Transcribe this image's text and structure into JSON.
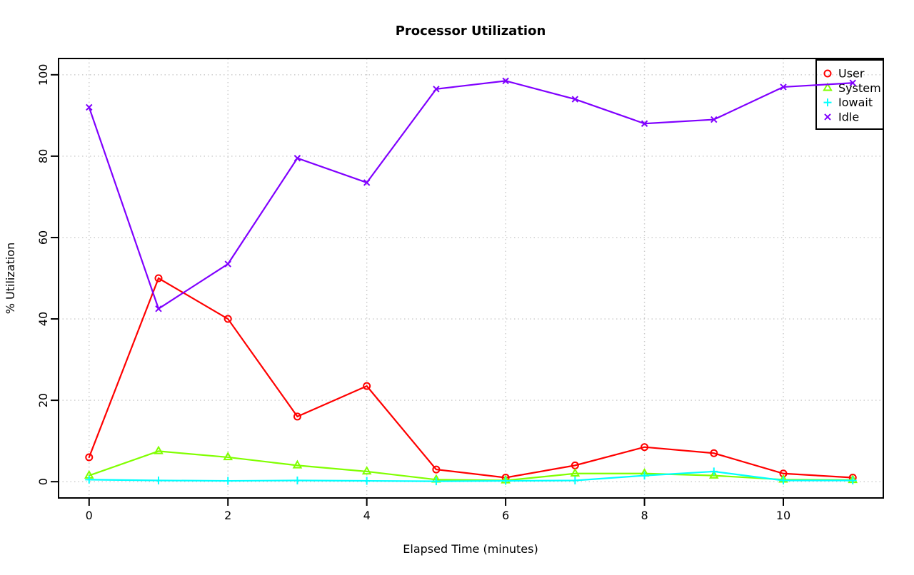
{
  "page": {
    "background": "#ffffff",
    "text_color": "#000000"
  },
  "chart_data": {
    "type": "line",
    "title": "Processor Utilization",
    "xlabel": "Elapsed Time (minutes)",
    "ylabel": "% Utilization",
    "x": [
      0,
      1,
      2,
      3,
      4,
      5,
      6,
      7,
      8,
      9,
      10,
      11
    ],
    "xticks": [
      0,
      2,
      4,
      6,
      8,
      10
    ],
    "yticks": [
      0,
      20,
      40,
      60,
      80,
      100
    ],
    "xlim": [
      -0.44,
      11.44
    ],
    "ylim": [
      -4,
      104
    ],
    "grid": {
      "style": "dotted",
      "color": "#c9c9c9",
      "vertical_at": [
        0,
        2,
        4,
        6,
        8,
        10
      ],
      "horizontal_at": [
        0,
        20,
        40,
        60,
        80,
        100
      ]
    },
    "series": [
      {
        "name": "User",
        "color": "#FF0000",
        "marker": "open-circle",
        "values": [
          6,
          50,
          40,
          16,
          23.5,
          3,
          1,
          4,
          8.5,
          7,
          2,
          1
        ]
      },
      {
        "name": "System",
        "color": "#80FF00",
        "marker": "open-triangle-up",
        "values": [
          1.5,
          7.5,
          6,
          4,
          2.5,
          0.5,
          0.3,
          2,
          2,
          1.5,
          0.5,
          0.4
        ]
      },
      {
        "name": "Iowait",
        "color": "#00FFFF",
        "marker": "plus",
        "values": [
          0.5,
          0.3,
          0.2,
          0.3,
          0.2,
          0.1,
          0.2,
          0.3,
          1.5,
          2.5,
          0.3,
          0.3
        ]
      },
      {
        "name": "Idle",
        "color": "#8000FF",
        "marker": "x-cross",
        "values": [
          92,
          42.5,
          53.5,
          79.5,
          73.5,
          96.5,
          98.5,
          94,
          88,
          89,
          97,
          98
        ]
      }
    ],
    "legend": {
      "position": "top-right",
      "entries": [
        "User",
        "System",
        "Iowait",
        "Idle"
      ]
    }
  }
}
